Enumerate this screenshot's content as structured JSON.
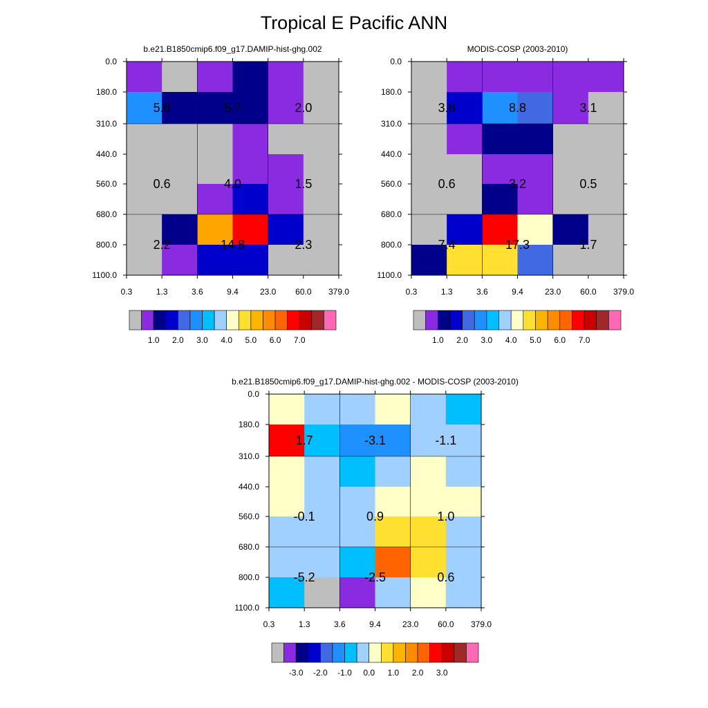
{
  "figure": {
    "title": "Tropical E Pacific ANN"
  },
  "chart_data": [
    {
      "type": "heatmap",
      "title": "b.e21.B1850cmip6.f09_g17.DAMIP-hist-ghg.002",
      "x_tick_labels": [
        "0.3",
        "1.3",
        "3.6",
        "9.4",
        "23.0",
        "60.0",
        "379.0"
      ],
      "y_tick_labels": [
        "0.0",
        "180.0",
        "310.0",
        "440.0",
        "560.0",
        "680.0",
        "800.0",
        "1100.0"
      ],
      "cell_colors": [
        [
          "#8a2be2",
          "#bebebe",
          "#8a2be2",
          "#00008b",
          "#8a2be2",
          "#bebebe"
        ],
        [
          "#1e90ff",
          "#00008b",
          "#00008b",
          "#00008b",
          "#8a2be2",
          "#bebebe"
        ],
        [
          "#bebebe",
          "#bebebe",
          "#bebebe",
          "#8a2be2",
          "#bebebe",
          "#bebebe"
        ],
        [
          "#bebebe",
          "#bebebe",
          "#bebebe",
          "#8a2be2",
          "#8a2be2",
          "#bebebe"
        ],
        [
          "#bebebe",
          "#bebebe",
          "#8a2be2",
          "#0000cd",
          "#8a2be2",
          "#bebebe"
        ],
        [
          "#bebebe",
          "#00008b",
          "#ffa500",
          "#ff0000",
          "#0000cd",
          "#bebebe"
        ],
        [
          "#bebebe",
          "#8a2be2",
          "#0000cd",
          "#0000cd",
          "#bebebe",
          "#bebebe"
        ]
      ],
      "annotations": [
        {
          "text": "5.6",
          "xi": 0,
          "yi": 0
        },
        {
          "text": "5.7",
          "xi": 1,
          "yi": 0
        },
        {
          "text": "2.0",
          "xi": 2,
          "yi": 0
        },
        {
          "text": "0.6",
          "xi": 0,
          "yi": 1
        },
        {
          "text": "4.0",
          "xi": 1,
          "yi": 1
        },
        {
          "text": "1.5",
          "xi": 2,
          "yi": 1
        },
        {
          "text": "2.2",
          "xi": 0,
          "yi": 2
        },
        {
          "text": "14.8",
          "xi": 1,
          "yi": 2
        },
        {
          "text": "2.3",
          "xi": 2,
          "yi": 2
        }
      ],
      "colorbar": {
        "colors": [
          "#bebebe",
          "#8a2be2",
          "#00008b",
          "#0000cd",
          "#4169e1",
          "#1e90ff",
          "#00bfff",
          "#a0d0ff",
          "#ffffc8",
          "#ffe030",
          "#ffb400",
          "#ff8c00",
          "#ff6400",
          "#ff0000",
          "#c80000",
          "#a02828",
          "#ff69b4"
        ],
        "labels": [
          "1.0",
          "2.0",
          "3.0",
          "4.0",
          "5.0",
          "6.0",
          "7.0"
        ]
      }
    },
    {
      "type": "heatmap",
      "title": "MODIS-COSP (2003-2010)",
      "x_tick_labels": [
        "0.3",
        "1.3",
        "3.6",
        "9.4",
        "23.0",
        "60.0",
        "379.0"
      ],
      "y_tick_labels": [
        "0.0",
        "180.0",
        "310.0",
        "440.0",
        "560.0",
        "680.0",
        "800.0",
        "1100.0"
      ],
      "cell_colors": [
        [
          "#bebebe",
          "#8a2be2",
          "#8a2be2",
          "#8a2be2",
          "#8a2be2",
          "#8a2be2"
        ],
        [
          "#bebebe",
          "#0000cd",
          "#1e90ff",
          "#4169e1",
          "#8a2be2",
          "#bebebe"
        ],
        [
          "#bebebe",
          "#8a2be2",
          "#00008b",
          "#00008b",
          "#bebebe",
          "#bebebe"
        ],
        [
          "#bebebe",
          "#bebebe",
          "#8a2be2",
          "#8a2be2",
          "#bebebe",
          "#bebebe"
        ],
        [
          "#bebebe",
          "#bebebe",
          "#00008b",
          "#8a2be2",
          "#bebebe",
          "#bebebe"
        ],
        [
          "#bebebe",
          "#0000cd",
          "#ff0000",
          "#ffffc8",
          "#00008b",
          "#bebebe"
        ],
        [
          "#00008b",
          "#ffe030",
          "#ffe030",
          "#4169e1",
          "#bebebe",
          "#bebebe"
        ]
      ],
      "annotations": [
        {
          "text": "3.8",
          "xi": 0,
          "yi": 0
        },
        {
          "text": "8.8",
          "xi": 1,
          "yi": 0
        },
        {
          "text": "3.1",
          "xi": 2,
          "yi": 0
        },
        {
          "text": "0.6",
          "xi": 0,
          "yi": 1
        },
        {
          "text": "3.2",
          "xi": 1,
          "yi": 1
        },
        {
          "text": "0.5",
          "xi": 2,
          "yi": 1
        },
        {
          "text": "7.4",
          "xi": 0,
          "yi": 2
        },
        {
          "text": "17.3",
          "xi": 1,
          "yi": 2
        },
        {
          "text": "1.7",
          "xi": 2,
          "yi": 2
        }
      ],
      "colorbar": {
        "colors": [
          "#bebebe",
          "#8a2be2",
          "#00008b",
          "#0000cd",
          "#4169e1",
          "#1e90ff",
          "#00bfff",
          "#a0d0ff",
          "#ffffc8",
          "#ffe030",
          "#ffb400",
          "#ff8c00",
          "#ff6400",
          "#ff0000",
          "#c80000",
          "#a02828",
          "#ff69b4"
        ],
        "labels": [
          "1.0",
          "2.0",
          "3.0",
          "4.0",
          "5.0",
          "6.0",
          "7.0"
        ]
      }
    },
    {
      "type": "heatmap",
      "title": "b.e21.B1850cmip6.f09_g17.DAMIP-hist-ghg.002 - MODIS-COSP (2003-2010)",
      "x_tick_labels": [
        "0.3",
        "1.3",
        "3.6",
        "9.4",
        "23.0",
        "60.0",
        "379.0"
      ],
      "y_tick_labels": [
        "0.0",
        "180.0",
        "310.0",
        "440.0",
        "560.0",
        "680.0",
        "800.0",
        "1100.0"
      ],
      "cell_colors": [
        [
          "#ffffc8",
          "#a0d0ff",
          "#a0d0ff",
          "#ffffc8",
          "#a0d0ff",
          "#00bfff"
        ],
        [
          "#ff0000",
          "#00bfff",
          "#1e90ff",
          "#1e90ff",
          "#a0d0ff",
          "#a0d0ff"
        ],
        [
          "#ffffc8",
          "#a0d0ff",
          "#00bfff",
          "#a0d0ff",
          "#ffffc8",
          "#a0d0ff"
        ],
        [
          "#ffffc8",
          "#a0d0ff",
          "#a0d0ff",
          "#ffffc8",
          "#ffffc8",
          "#ffffc8"
        ],
        [
          "#a0d0ff",
          "#a0d0ff",
          "#a0d0ff",
          "#ffe030",
          "#ffe030",
          "#a0d0ff"
        ],
        [
          "#a0d0ff",
          "#a0d0ff",
          "#00bfff",
          "#ff6400",
          "#ffe030",
          "#a0d0ff"
        ],
        [
          "#00bfff",
          "#bebebe",
          "#8a2be2",
          "#a0d0ff",
          "#ffffc8",
          "#a0d0ff"
        ]
      ],
      "annotations": [
        {
          "text": "1.7",
          "xi": 0,
          "yi": 0
        },
        {
          "text": "-3.1",
          "xi": 1,
          "yi": 0
        },
        {
          "text": "-1.1",
          "xi": 2,
          "yi": 0
        },
        {
          "text": "-0.1",
          "xi": 0,
          "yi": 1
        },
        {
          "text": "0.9",
          "xi": 1,
          "yi": 1
        },
        {
          "text": "1.0",
          "xi": 2,
          "yi": 1
        },
        {
          "text": "-5.2",
          "xi": 0,
          "yi": 2
        },
        {
          "text": "-2.5",
          "xi": 1,
          "yi": 2
        },
        {
          "text": "0.6",
          "xi": 2,
          "yi": 2
        }
      ],
      "colorbar": {
        "colors": [
          "#bebebe",
          "#8a2be2",
          "#00008b",
          "#0000cd",
          "#4169e1",
          "#1e90ff",
          "#00bfff",
          "#a0d0ff",
          "#ffffc8",
          "#ffe030",
          "#ffb400",
          "#ff8c00",
          "#ff6400",
          "#ff0000",
          "#c80000",
          "#a02828",
          "#ff69b4"
        ],
        "labels": [
          "-3.0",
          "-2.0",
          "-1.0",
          "0.0",
          "1.0",
          "2.0",
          "3.0"
        ]
      }
    }
  ]
}
